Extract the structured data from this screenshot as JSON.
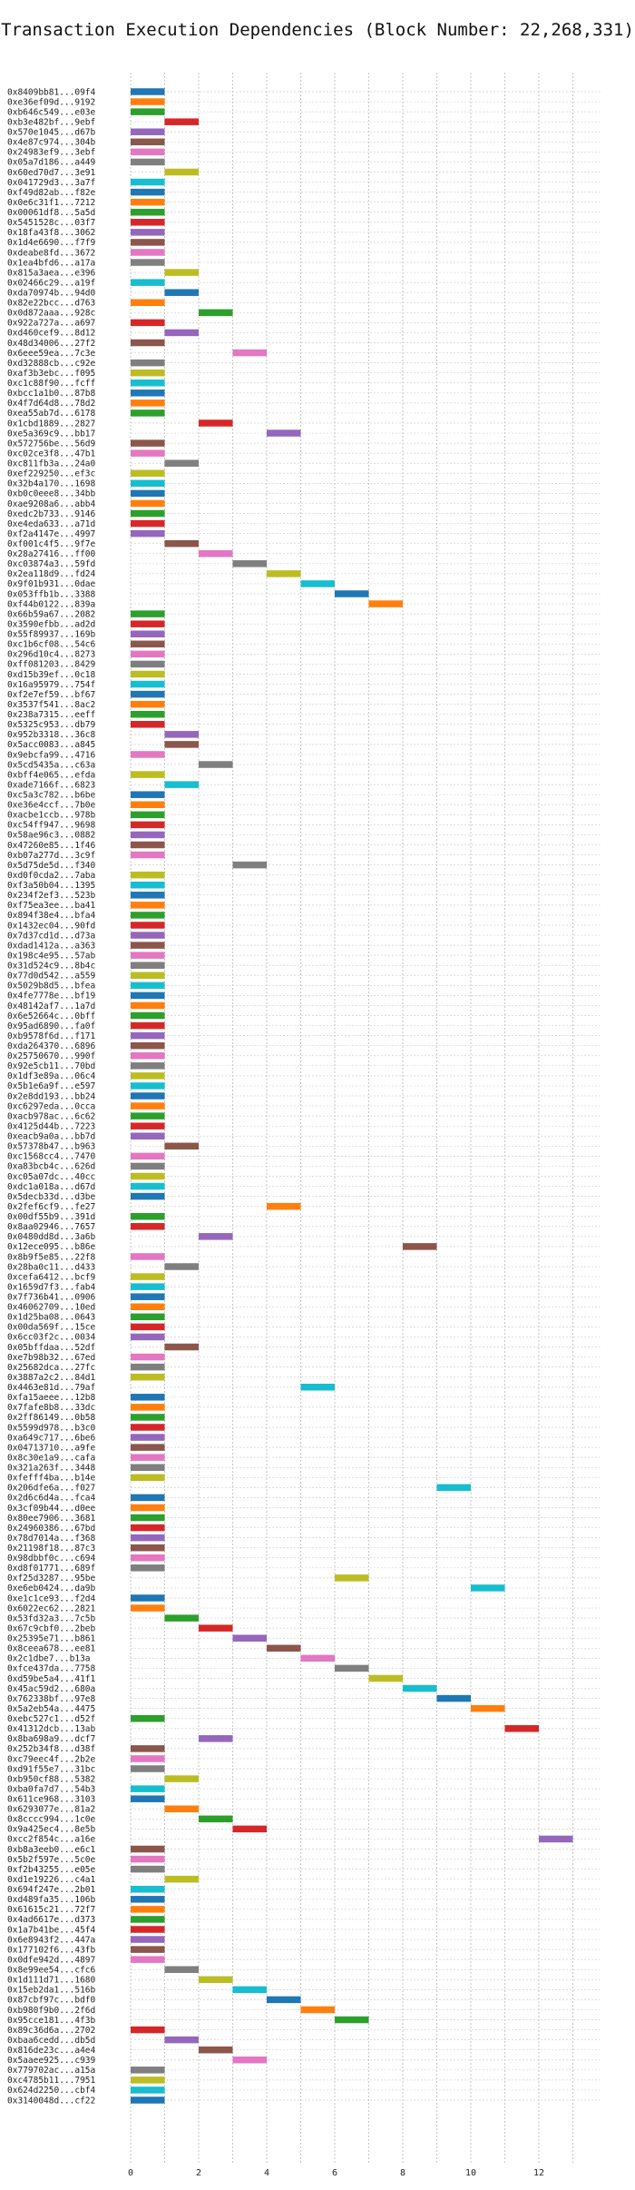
{
  "chart_data": {
    "type": "bar",
    "title": "Transaction Execution Dependencies (Block Number: 22,268,331)",
    "xlabel": "",
    "ylabel": "",
    "xlim": [
      0,
      13.8
    ],
    "xticks": [
      0,
      2,
      4,
      6,
      8,
      10,
      12
    ],
    "grid": true,
    "colors": [
      "#1f77b4",
      "#ff7f0e",
      "#2ca02c",
      "#d62728",
      "#9467bd",
      "#8c564b",
      "#e377c2",
      "#7f7f7f",
      "#bcbd22",
      "#17becf"
    ],
    "transactions": [
      {
        "hash": "0x8409bb81...09f4",
        "start": 0
      },
      {
        "hash": "0xe36ef09d...9192",
        "start": 0
      },
      {
        "hash": "0xb646c549...e03e",
        "start": 0
      },
      {
        "hash": "0xb3e482bf...9ebf",
        "start": 1
      },
      {
        "hash": "0x570e1045...d67b",
        "start": 0
      },
      {
        "hash": "0x4e87c974...304b",
        "start": 0
      },
      {
        "hash": "0x24983ef9...3ebf",
        "start": 0
      },
      {
        "hash": "0x05a7d186...a449",
        "start": 0
      },
      {
        "hash": "0x60ed70d7...3e91",
        "start": 1
      },
      {
        "hash": "0x041729d3...3a7f",
        "start": 0
      },
      {
        "hash": "0xf49d82ab...f82e",
        "start": 0
      },
      {
        "hash": "0x0e6c31f1...7212",
        "start": 0
      },
      {
        "hash": "0x00061df8...5a5d",
        "start": 0
      },
      {
        "hash": "0x5451528c...03f7",
        "start": 0
      },
      {
        "hash": "0x18fa43f8...3062",
        "start": 0
      },
      {
        "hash": "0x1d4e6690...f7f9",
        "start": 0
      },
      {
        "hash": "0xdeabe8fd...3672",
        "start": 0
      },
      {
        "hash": "0x1ea4bfd6...a17a",
        "start": 0
      },
      {
        "hash": "0x815a3aea...e396",
        "start": 1
      },
      {
        "hash": "0x02466c29...a19f",
        "start": 0
      },
      {
        "hash": "0xda70974b...94d0",
        "start": 1
      },
      {
        "hash": "0x82e22bcc...d763",
        "start": 0
      },
      {
        "hash": "0x0d872aaa...928c",
        "start": 2
      },
      {
        "hash": "0x922a727a...a697",
        "start": 0
      },
      {
        "hash": "0xd460cef9...8d12",
        "start": 1
      },
      {
        "hash": "0x48d34006...27f2",
        "start": 0
      },
      {
        "hash": "0x6eee59ea...7c3e",
        "start": 3
      },
      {
        "hash": "0xd32888cb...c92e",
        "start": 0
      },
      {
        "hash": "0xaf3b3ebc...f095",
        "start": 0
      },
      {
        "hash": "0xc1c88f90...fcff",
        "start": 0
      },
      {
        "hash": "0xbcc1a1b0...87b8",
        "start": 0
      },
      {
        "hash": "0x4f7d64d8...78d2",
        "start": 0
      },
      {
        "hash": "0xea55ab7d...6178",
        "start": 0
      },
      {
        "hash": "0x1cbd1889...2827",
        "start": 2
      },
      {
        "hash": "0xe5a369c9...bb17",
        "start": 4
      },
      {
        "hash": "0x572756be...56d9",
        "start": 0
      },
      {
        "hash": "0xc02ce3f8...47b1",
        "start": 0
      },
      {
        "hash": "0xc811fb3a...24a0",
        "start": 1
      },
      {
        "hash": "0xef229250...ef3c",
        "start": 0
      },
      {
        "hash": "0x32b4a170...1698",
        "start": 0
      },
      {
        "hash": "0xb0c0eee8...34bb",
        "start": 0
      },
      {
        "hash": "0xae9208a6...abb4",
        "start": 0
      },
      {
        "hash": "0xedc2b733...9146",
        "start": 0
      },
      {
        "hash": "0xe4eda633...a71d",
        "start": 0
      },
      {
        "hash": "0xf2a4147e...4997",
        "start": 0
      },
      {
        "hash": "0xf001c4f5...9f7e",
        "start": 1
      },
      {
        "hash": "0x28a27416...ff00",
        "start": 2
      },
      {
        "hash": "0xc03874a3...59fd",
        "start": 3
      },
      {
        "hash": "0x2ea118d9...fd24",
        "start": 4
      },
      {
        "hash": "0x9f01b931...0dae",
        "start": 5
      },
      {
        "hash": "0x053ffb1b...3388",
        "start": 6
      },
      {
        "hash": "0xf44b0122...839a",
        "start": 7
      },
      {
        "hash": "0x66b59a67...2082",
        "start": 0
      },
      {
        "hash": "0x3590efbb...ad2d",
        "start": 0
      },
      {
        "hash": "0x55f89937...169b",
        "start": 0
      },
      {
        "hash": "0xc1b6cf08...54c6",
        "start": 0
      },
      {
        "hash": "0x296d10c4...8273",
        "start": 0
      },
      {
        "hash": "0xff081203...8429",
        "start": 0
      },
      {
        "hash": "0xd15b39ef...0c18",
        "start": 0
      },
      {
        "hash": "0x16a95979...754f",
        "start": 0
      },
      {
        "hash": "0xf2e7ef59...bf67",
        "start": 0
      },
      {
        "hash": "0x3537f541...8ac2",
        "start": 0
      },
      {
        "hash": "0x238a7315...eeff",
        "start": 0
      },
      {
        "hash": "0x5325c953...db79",
        "start": 0
      },
      {
        "hash": "0x952b3318...36c8",
        "start": 1
      },
      {
        "hash": "0x5acc0083...a845",
        "start": 1
      },
      {
        "hash": "0x9ebcfa99...4716",
        "start": 0
      },
      {
        "hash": "0x5cd5435a...c63a",
        "start": 2
      },
      {
        "hash": "0xbff4e065...efda",
        "start": 0
      },
      {
        "hash": "0xade7166f...6823",
        "start": 1
      },
      {
        "hash": "0xc5a3c782...b6be",
        "start": 0
      },
      {
        "hash": "0xe36e4ccf...7b0e",
        "start": 0
      },
      {
        "hash": "0xacbe1ccb...978b",
        "start": 0
      },
      {
        "hash": "0xc54ff947...9698",
        "start": 0
      },
      {
        "hash": "0x58ae96c3...0882",
        "start": 0
      },
      {
        "hash": "0x47260e85...1f46",
        "start": 0
      },
      {
        "hash": "0xb07a277d...3c9f",
        "start": 0
      },
      {
        "hash": "0x5d75de5d...f340",
        "start": 3
      },
      {
        "hash": "0xd0f0cda2...7aba",
        "start": 0
      },
      {
        "hash": "0xf3a50b04...1395",
        "start": 0
      },
      {
        "hash": "0x234f2ef3...523b",
        "start": 0
      },
      {
        "hash": "0xf75ea3ee...ba41",
        "start": 0
      },
      {
        "hash": "0x894f38e4...bfa4",
        "start": 0
      },
      {
        "hash": "0x1432ec04...90fd",
        "start": 0
      },
      {
        "hash": "0x7d37cd1d...d73a",
        "start": 0
      },
      {
        "hash": "0xdad1412a...a363",
        "start": 0
      },
      {
        "hash": "0x198c4e95...57ab",
        "start": 0
      },
      {
        "hash": "0x31d524c9...8b4c",
        "start": 0
      },
      {
        "hash": "0x77d0d542...a559",
        "start": 0
      },
      {
        "hash": "0x5029b8d5...bfea",
        "start": 0
      },
      {
        "hash": "0x4fe7778e...bf19",
        "start": 0
      },
      {
        "hash": "0x48142af7...1a7d",
        "start": 0
      },
      {
        "hash": "0x6e52664c...0bff",
        "start": 0
      },
      {
        "hash": "0x95ad6890...fa0f",
        "start": 0
      },
      {
        "hash": "0xb9578f6d...f171",
        "start": 0
      },
      {
        "hash": "0xda264370...6896",
        "start": 0
      },
      {
        "hash": "0x25750670...990f",
        "start": 0
      },
      {
        "hash": "0x92e5cb11...70bd",
        "start": 0
      },
      {
        "hash": "0x1df3e89a...06c4",
        "start": 0
      },
      {
        "hash": "0x5b1e6a9f...e597",
        "start": 0
      },
      {
        "hash": "0x2e8dd193...bb24",
        "start": 0
      },
      {
        "hash": "0xc6297eda...0cca",
        "start": 0
      },
      {
        "hash": "0xacb978ac...6c62",
        "start": 0
      },
      {
        "hash": "0x4125d44b...7223",
        "start": 0
      },
      {
        "hash": "0xeacb9a0a...bb7d",
        "start": 0
      },
      {
        "hash": "0x57378b47...b963",
        "start": 1
      },
      {
        "hash": "0xc1568cc4...7470",
        "start": 0
      },
      {
        "hash": "0xa83bcb4c...626d",
        "start": 0
      },
      {
        "hash": "0xc05a07dc...40cc",
        "start": 0
      },
      {
        "hash": "0xdc1a018a...d67d",
        "start": 0
      },
      {
        "hash": "0x5decb33d...d3be",
        "start": 0
      },
      {
        "hash": "0x2fef6cf9...fe27",
        "start": 4
      },
      {
        "hash": "0x00df55b9...391d",
        "start": 0
      },
      {
        "hash": "0x8aa02946...7657",
        "start": 0
      },
      {
        "hash": "0x0480dd8d...3a6b",
        "start": 2
      },
      {
        "hash": "0x12ece095...b86e",
        "start": 8
      },
      {
        "hash": "0x8b9f5e85...22f8",
        "start": 0
      },
      {
        "hash": "0x28ba0c11...d433",
        "start": 1
      },
      {
        "hash": "0xcefa6412...bcf9",
        "start": 0
      },
      {
        "hash": "0x1659d7f3...fab4",
        "start": 0
      },
      {
        "hash": "0x7f736b41...0906",
        "start": 0
      },
      {
        "hash": "0x46062709...10ed",
        "start": 0
      },
      {
        "hash": "0x1d25ba08...0643",
        "start": 0
      },
      {
        "hash": "0x00da569f...15ce",
        "start": 0
      },
      {
        "hash": "0x6cc03f2c...0034",
        "start": 0
      },
      {
        "hash": "0x05bffdaa...52df",
        "start": 1
      },
      {
        "hash": "0xe7b98b32...67ed",
        "start": 0
      },
      {
        "hash": "0x25682dca...27fc",
        "start": 0
      },
      {
        "hash": "0x3887a2c2...84d1",
        "start": 0
      },
      {
        "hash": "0x4463e81d...79af",
        "start": 5
      },
      {
        "hash": "0xfa15aeee...12b8",
        "start": 0
      },
      {
        "hash": "0x7fafe8b8...33dc",
        "start": 0
      },
      {
        "hash": "0x2ff86149...0b58",
        "start": 0
      },
      {
        "hash": "0x5599d978...b3c0",
        "start": 0
      },
      {
        "hash": "0xa649c717...6be6",
        "start": 0
      },
      {
        "hash": "0x04713710...a9fe",
        "start": 0
      },
      {
        "hash": "0x8c30e1a9...cafa",
        "start": 0
      },
      {
        "hash": "0x321a263f...3448",
        "start": 0
      },
      {
        "hash": "0xfefff4ba...b14e",
        "start": 0
      },
      {
        "hash": "0x206dfe6a...f027",
        "start": 9
      },
      {
        "hash": "0x2d6c6d4a...fca4",
        "start": 0
      },
      {
        "hash": "0x3cf09b44...d0ee",
        "start": 0
      },
      {
        "hash": "0x80ee7906...3681",
        "start": 0
      },
      {
        "hash": "0x24960386...67bd",
        "start": 0
      },
      {
        "hash": "0x78d7014a...f368",
        "start": 0
      },
      {
        "hash": "0x21198f18...87c3",
        "start": 0
      },
      {
        "hash": "0x98dbbf0c...c694",
        "start": 0
      },
      {
        "hash": "0xd8f01771...689f",
        "start": 0
      },
      {
        "hash": "0xf25d3287...95be",
        "start": 6
      },
      {
        "hash": "0xe6eb0424...da9b",
        "start": 10
      },
      {
        "hash": "0xe1c1ce93...f2d4",
        "start": 0
      },
      {
        "hash": "0x6022ec62...2821",
        "start": 0
      },
      {
        "hash": "0x53fd32a3...7c5b",
        "start": 1
      },
      {
        "hash": "0x67c9cbf0...2beb",
        "start": 2
      },
      {
        "hash": "0x25395e71...b861",
        "start": 3
      },
      {
        "hash": "0x8ceea678...ee81",
        "start": 4
      },
      {
        "hash": "0x2c1dbe7...b13a",
        "start": 5
      },
      {
        "hash": "0xfce437da...7758",
        "start": 6
      },
      {
        "hash": "0xd59be5a4...41f1",
        "start": 7
      },
      {
        "hash": "0x45ac59d2...680a",
        "start": 8
      },
      {
        "hash": "0x762338bf...97e8",
        "start": 9
      },
      {
        "hash": "0x5a2eb54a...4475",
        "start": 10
      },
      {
        "hash": "0xebc527c1...d52f",
        "start": 0
      },
      {
        "hash": "0x41312dcb...13ab",
        "start": 11
      },
      {
        "hash": "0x8ba698a9...dcf7",
        "start": 2
      },
      {
        "hash": "0x252b34f8...d38f",
        "start": 0
      },
      {
        "hash": "0xc79eec4f...2b2e",
        "start": 0
      },
      {
        "hash": "0xd91f55e7...31bc",
        "start": 0
      },
      {
        "hash": "0xb950cf88...5382",
        "start": 1
      },
      {
        "hash": "0xba0fa7d7...54b3",
        "start": 0
      },
      {
        "hash": "0x611ce968...3103",
        "start": 0
      },
      {
        "hash": "0x6293077e...81a2",
        "start": 1
      },
      {
        "hash": "0x8cccc994...1c0e",
        "start": 2
      },
      {
        "hash": "0x9a425ec4...8e5b",
        "start": 3
      },
      {
        "hash": "0xcc2f854c...a16e",
        "start": 12
      },
      {
        "hash": "0xb8a3eeb0...e6c1",
        "start": 0
      },
      {
        "hash": "0x5b2f597e...5c0e",
        "start": 0
      },
      {
        "hash": "0xf2b43255...e05e",
        "start": 0
      },
      {
        "hash": "0xd1e19226...c4a1",
        "start": 1
      },
      {
        "hash": "0x694f247e...2b01",
        "start": 0
      },
      {
        "hash": "0xd489fa35...106b",
        "start": 0
      },
      {
        "hash": "0x61615c21...72f7",
        "start": 0
      },
      {
        "hash": "0x4ad6617e...d373",
        "start": 0
      },
      {
        "hash": "0x1a7b41be...45f4",
        "start": 0
      },
      {
        "hash": "0x6e8943f2...447a",
        "start": 0
      },
      {
        "hash": "0x177102f6...43fb",
        "start": 0
      },
      {
        "hash": "0x0dfe942d...4897",
        "start": 0
      },
      {
        "hash": "0x8e99ee54...cfc6",
        "start": 1
      },
      {
        "hash": "0x1d111d71...1680",
        "start": 2
      },
      {
        "hash": "0x15eb2da1...516b",
        "start": 3
      },
      {
        "hash": "0x87cbf97c...bdf0",
        "start": 4
      },
      {
        "hash": "0xb980f9b0...2f6d",
        "start": 5
      },
      {
        "hash": "0x95cce181...4f3b",
        "start": 6
      },
      {
        "hash": "0x89c36d6a...2702",
        "start": 0
      },
      {
        "hash": "0xbaa6cedd...db5d",
        "start": 1
      },
      {
        "hash": "0x816de23c...a4e4",
        "start": 2
      },
      {
        "hash": "0x5aaee925...c939",
        "start": 3
      },
      {
        "hash": "0x779702ac...a15a",
        "start": 0
      },
      {
        "hash": "0xc4785b11...7951",
        "start": 0
      },
      {
        "hash": "0x624d2250...cbf4",
        "start": 0
      },
      {
        "hash": "0x3140048d...cf22",
        "start": 0
      }
    ]
  }
}
